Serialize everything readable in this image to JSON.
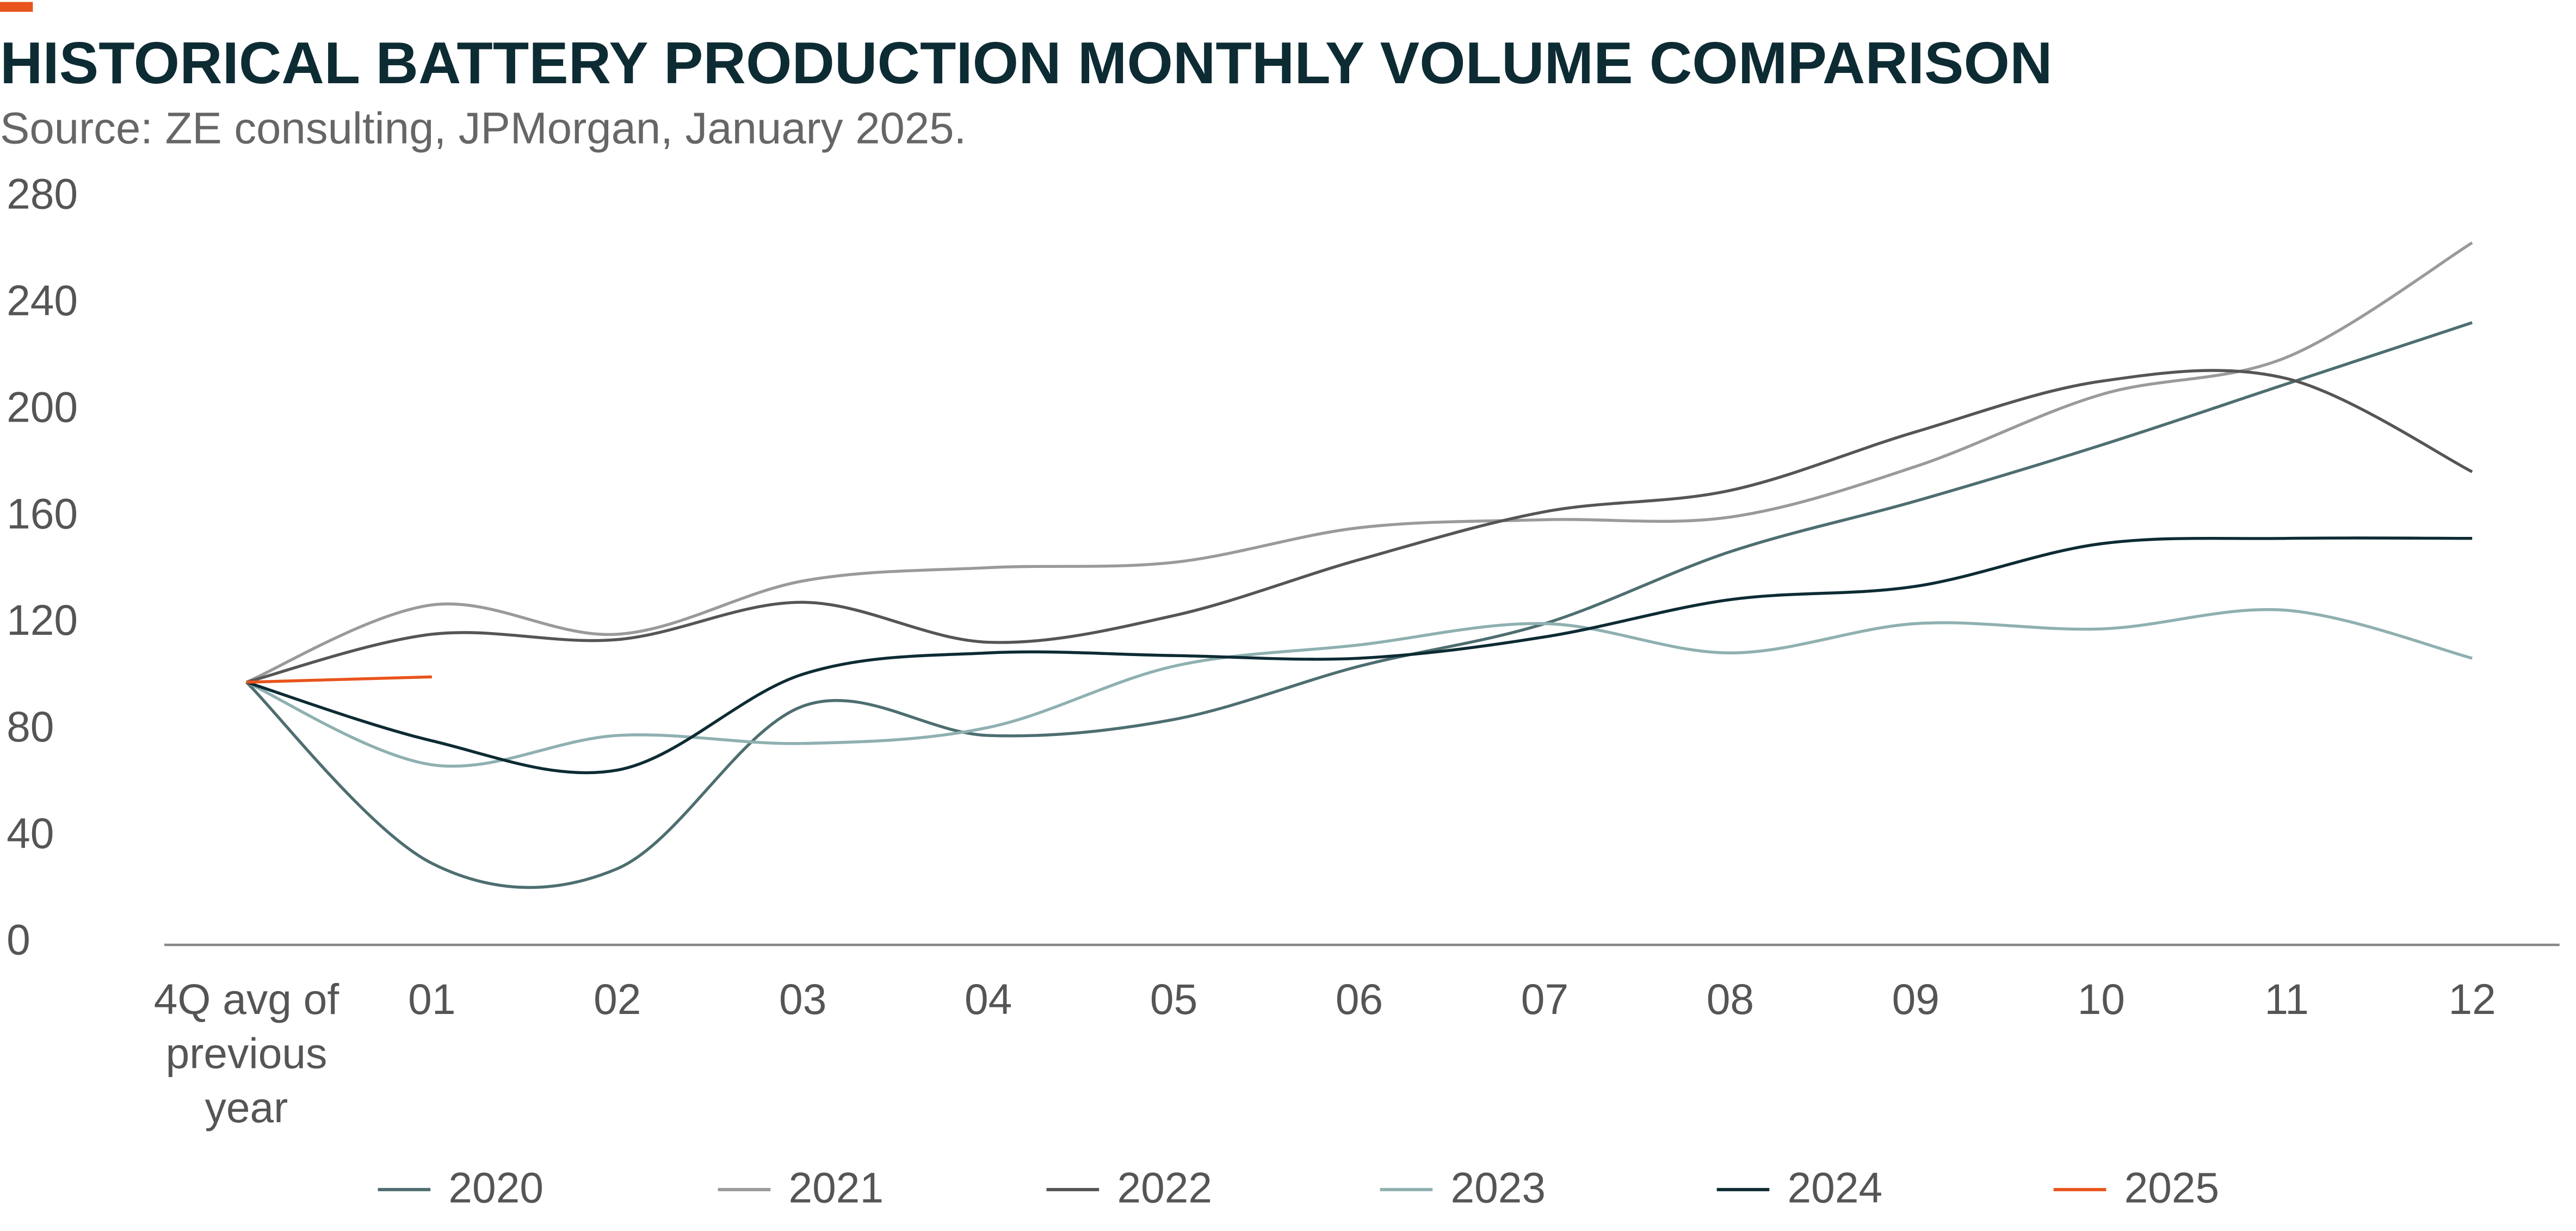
{
  "chart_data": {
    "type": "line",
    "title": "HISTORICAL BATTERY PRODUCTION MONTHLY VOLUME COMPARISON",
    "subtitle": "Source: ZE consulting, JPMorgan, January 2025.",
    "categories": [
      "4Q avg of previous year",
      "01",
      "02",
      "03",
      "04",
      "05",
      "06",
      "07",
      "08",
      "09",
      "10",
      "11",
      "12"
    ],
    "series": [
      {
        "name": "2020",
        "color": "#4e6e70",
        "values": [
          98,
          30,
          28,
          89,
          78,
          84,
          104,
          120,
          147,
          166,
          187,
          210,
          233
        ]
      },
      {
        "name": "2021",
        "color": "#9a9a9a",
        "values": [
          98,
          127,
          116,
          136,
          141,
          143,
          156,
          159,
          160,
          179,
          206,
          220,
          263
        ]
      },
      {
        "name": "2022",
        "color": "#555555",
        "values": [
          98,
          116,
          114,
          128,
          113,
          123,
          144,
          162,
          170,
          192,
          211,
          212,
          177
        ]
      },
      {
        "name": "2023",
        "color": "#8fb0b0",
        "values": [
          98,
          67,
          78,
          75,
          81,
          104,
          112,
          120,
          109,
          120,
          118,
          125,
          107
        ]
      },
      {
        "name": "2024",
        "color": "#0d2b33",
        "values": [
          98,
          76,
          65,
          101,
          109,
          108,
          107,
          115,
          129,
          134,
          150,
          152,
          152
        ]
      },
      {
        "name": "2025",
        "color": "#e8541c",
        "values": [
          98,
          100,
          null,
          null,
          null,
          null,
          null,
          null,
          null,
          null,
          null,
          null,
          null
        ]
      }
    ],
    "ylim": [
      0,
      280
    ],
    "yticks": [
      0,
      40,
      80,
      120,
      160,
      200,
      240,
      280
    ],
    "grid": false,
    "legend": "bottom"
  }
}
